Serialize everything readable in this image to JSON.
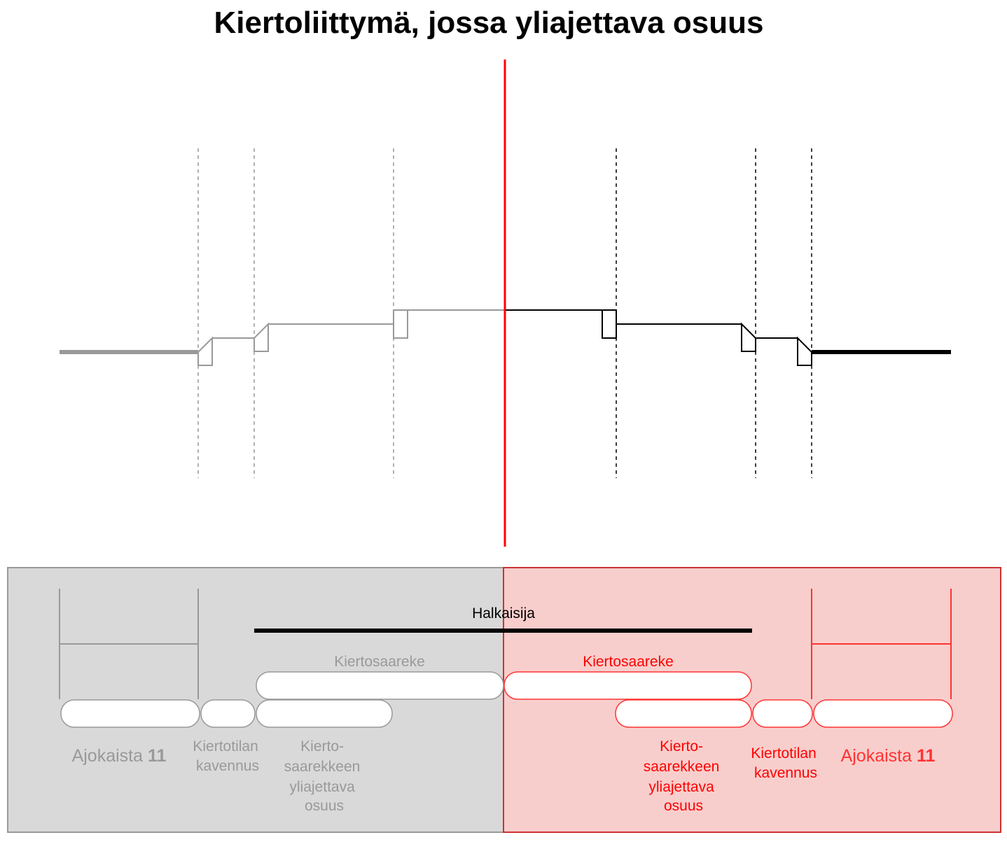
{
  "title": "Kiertoliittymä, jossa yliajettava osuus",
  "colors": {
    "gray_line": "#999999",
    "gray_text": "#999999",
    "red": "#ff0000",
    "red_text": "#ff3333",
    "black": "#000000",
    "gray_panel_fill": "#d9d9d9",
    "gray_panel_stroke": "#999999",
    "red_panel_fill": "#f8cecc",
    "red_panel_stroke": "#cc3333"
  },
  "diameter_label": "Halkaisija",
  "left_panel": {
    "island_label": "Kiertosaareke",
    "lane_label": "Ajokaista",
    "lane_value": "11",
    "narrowing_label": [
      "Kiertotilan",
      "kavennus"
    ],
    "overrun_label": [
      "Kierto-",
      "saarekkeen",
      "yliajettava",
      "osuus"
    ]
  },
  "right_panel": {
    "island_label": "Kiertosaareke",
    "lane_label": "Ajokaista",
    "lane_value": "11",
    "narrowing_label": [
      "Kiertotilan",
      "kavennus"
    ],
    "overrun_label": [
      "Kierto-",
      "saarekkeen",
      "yliajettava",
      "osuus"
    ]
  }
}
